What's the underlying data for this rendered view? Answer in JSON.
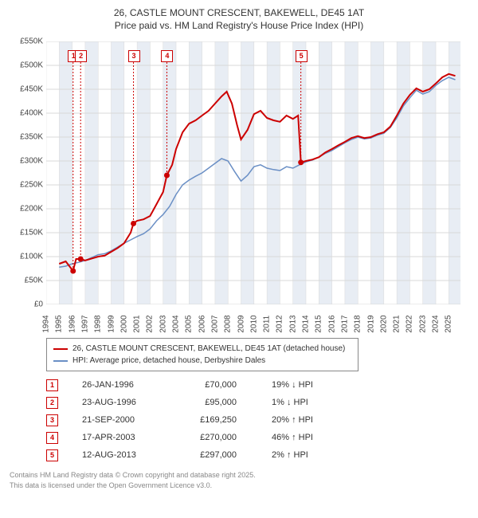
{
  "title_line1": "26, CASTLE MOUNT CRESCENT, BAKEWELL, DE45 1AT",
  "title_line2": "Price paid vs. HM Land Registry's House Price Index (HPI)",
  "chart": {
    "type": "line",
    "background_color": "#ffffff",
    "grid_color": "#d9d9d9",
    "band_color": "#e8edf4",
    "x_min": 1994,
    "x_max": 2025.9,
    "y_min": 0,
    "y_max": 550000,
    "y_ticks": [
      0,
      50000,
      100000,
      150000,
      200000,
      250000,
      300000,
      350000,
      400000,
      450000,
      500000,
      550000
    ],
    "y_tick_labels": [
      "£0",
      "£50K",
      "£100K",
      "£150K",
      "£200K",
      "£250K",
      "£300K",
      "£350K",
      "£400K",
      "£450K",
      "£500K",
      "£550K"
    ],
    "x_ticks": [
      1994,
      1995,
      1996,
      1997,
      1998,
      1999,
      2000,
      2001,
      2002,
      2003,
      2004,
      2005,
      2006,
      2007,
      2008,
      2009,
      2010,
      2011,
      2012,
      2013,
      2014,
      2015,
      2016,
      2017,
      2018,
      2019,
      2020,
      2021,
      2022,
      2023,
      2024,
      2025
    ],
    "bands": [
      [
        1995,
        1996
      ],
      [
        1997,
        1998
      ],
      [
        1999,
        2000
      ],
      [
        2001,
        2002
      ],
      [
        2003,
        2004
      ],
      [
        2005,
        2006
      ],
      [
        2007,
        2008
      ],
      [
        2009,
        2010
      ],
      [
        2011,
        2012
      ],
      [
        2013,
        2014
      ],
      [
        2015,
        2016
      ],
      [
        2017,
        2018
      ],
      [
        2019,
        2020
      ],
      [
        2021,
        2022
      ],
      [
        2023,
        2024
      ],
      [
        2025,
        2025.9
      ]
    ],
    "series_red": {
      "color": "#cc0000",
      "width": 2,
      "points": [
        [
          1995.0,
          85000
        ],
        [
          1995.5,
          90000
        ],
        [
          1996.07,
          70000
        ],
        [
          1996.3,
          95000
        ],
        [
          1996.65,
          95000
        ],
        [
          1997.0,
          92000
        ],
        [
          1997.5,
          96000
        ],
        [
          1998.0,
          100000
        ],
        [
          1998.5,
          102000
        ],
        [
          1999.0,
          110000
        ],
        [
          1999.5,
          118000
        ],
        [
          2000.0,
          128000
        ],
        [
          2000.5,
          150000
        ],
        [
          2000.72,
          169250
        ],
        [
          2001.0,
          175000
        ],
        [
          2001.5,
          178000
        ],
        [
          2002.0,
          185000
        ],
        [
          2002.5,
          210000
        ],
        [
          2003.0,
          235000
        ],
        [
          2003.29,
          270000
        ],
        [
          2003.7,
          292000
        ],
        [
          2004.0,
          325000
        ],
        [
          2004.5,
          360000
        ],
        [
          2005.0,
          378000
        ],
        [
          2005.5,
          385000
        ],
        [
          2006.0,
          395000
        ],
        [
          2006.5,
          405000
        ],
        [
          2007.0,
          420000
        ],
        [
          2007.5,
          435000
        ],
        [
          2007.9,
          445000
        ],
        [
          2008.3,
          420000
        ],
        [
          2008.7,
          375000
        ],
        [
          2009.0,
          345000
        ],
        [
          2009.5,
          365000
        ],
        [
          2010.0,
          398000
        ],
        [
          2010.5,
          405000
        ],
        [
          2011.0,
          390000
        ],
        [
          2011.5,
          385000
        ],
        [
          2012.0,
          382000
        ],
        [
          2012.5,
          395000
        ],
        [
          2013.0,
          388000
        ],
        [
          2013.4,
          395000
        ],
        [
          2013.61,
          297000
        ],
        [
          2014.0,
          300000
        ],
        [
          2014.5,
          303000
        ],
        [
          2015.0,
          308000
        ],
        [
          2015.5,
          318000
        ],
        [
          2016.0,
          325000
        ],
        [
          2016.5,
          333000
        ],
        [
          2017.0,
          340000
        ],
        [
          2017.5,
          348000
        ],
        [
          2018.0,
          352000
        ],
        [
          2018.5,
          348000
        ],
        [
          2019.0,
          350000
        ],
        [
          2019.5,
          356000
        ],
        [
          2020.0,
          360000
        ],
        [
          2020.5,
          372000
        ],
        [
          2021.0,
          395000
        ],
        [
          2021.5,
          420000
        ],
        [
          2022.0,
          438000
        ],
        [
          2022.5,
          452000
        ],
        [
          2023.0,
          445000
        ],
        [
          2023.5,
          450000
        ],
        [
          2024.0,
          462000
        ],
        [
          2024.5,
          475000
        ],
        [
          2025.0,
          482000
        ],
        [
          2025.5,
          478000
        ]
      ]
    },
    "series_blue": {
      "color": "#6a8fc5",
      "width": 1.5,
      "points": [
        [
          1995.0,
          78000
        ],
        [
          1995.5,
          80000
        ],
        [
          1996.0,
          85000
        ],
        [
          1996.5,
          88000
        ],
        [
          1997.0,
          92000
        ],
        [
          1997.5,
          98000
        ],
        [
          1998.0,
          104000
        ],
        [
          1998.5,
          106000
        ],
        [
          1999.0,
          112000
        ],
        [
          1999.5,
          120000
        ],
        [
          2000.0,
          128000
        ],
        [
          2000.5,
          135000
        ],
        [
          2001.0,
          142000
        ],
        [
          2001.5,
          148000
        ],
        [
          2002.0,
          158000
        ],
        [
          2002.5,
          175000
        ],
        [
          2003.0,
          188000
        ],
        [
          2003.5,
          205000
        ],
        [
          2004.0,
          230000
        ],
        [
          2004.5,
          250000
        ],
        [
          2005.0,
          260000
        ],
        [
          2005.5,
          268000
        ],
        [
          2006.0,
          275000
        ],
        [
          2006.5,
          285000
        ],
        [
          2007.0,
          295000
        ],
        [
          2007.5,
          305000
        ],
        [
          2008.0,
          300000
        ],
        [
          2008.5,
          278000
        ],
        [
          2009.0,
          258000
        ],
        [
          2009.5,
          270000
        ],
        [
          2010.0,
          288000
        ],
        [
          2010.5,
          292000
        ],
        [
          2011.0,
          285000
        ],
        [
          2011.5,
          282000
        ],
        [
          2012.0,
          280000
        ],
        [
          2012.5,
          288000
        ],
        [
          2013.0,
          285000
        ],
        [
          2013.5,
          292000
        ],
        [
          2014.0,
          298000
        ],
        [
          2014.5,
          302000
        ],
        [
          2015.0,
          308000
        ],
        [
          2015.5,
          316000
        ],
        [
          2016.0,
          322000
        ],
        [
          2016.5,
          330000
        ],
        [
          2017.0,
          338000
        ],
        [
          2017.5,
          345000
        ],
        [
          2018.0,
          350000
        ],
        [
          2018.5,
          346000
        ],
        [
          2019.0,
          348000
        ],
        [
          2019.5,
          354000
        ],
        [
          2020.0,
          358000
        ],
        [
          2020.5,
          370000
        ],
        [
          2021.0,
          390000
        ],
        [
          2021.5,
          415000
        ],
        [
          2022.0,
          432000
        ],
        [
          2022.5,
          448000
        ],
        [
          2023.0,
          440000
        ],
        [
          2023.5,
          445000
        ],
        [
          2024.0,
          458000
        ],
        [
          2024.5,
          468000
        ],
        [
          2025.0,
          475000
        ],
        [
          2025.5,
          470000
        ]
      ]
    },
    "sale_markers": [
      {
        "n": "1",
        "x": 1996.07,
        "y": 70000
      },
      {
        "n": "2",
        "x": 1996.65,
        "y": 95000
      },
      {
        "n": "3",
        "x": 2000.72,
        "y": 169250
      },
      {
        "n": "4",
        "x": 2003.29,
        "y": 270000
      },
      {
        "n": "5",
        "x": 2013.61,
        "y": 297000
      }
    ],
    "marker_dot_color": "#cc0000",
    "marker_box_y_value": 520000
  },
  "legend": {
    "red_label": "26, CASTLE MOUNT CRESCENT, BAKEWELL, DE45 1AT (detached house)",
    "blue_label": "HPI: Average price, detached house, Derbyshire Dales",
    "red_color": "#cc0000",
    "blue_color": "#6a8fc5"
  },
  "sales": [
    {
      "n": "1",
      "date": "26-JAN-1996",
      "price": "£70,000",
      "pct": "19% ↓ HPI"
    },
    {
      "n": "2",
      "date": "23-AUG-1996",
      "price": "£95,000",
      "pct": "1% ↓ HPI"
    },
    {
      "n": "3",
      "date": "21-SEP-2000",
      "price": "£169,250",
      "pct": "20% ↑ HPI"
    },
    {
      "n": "4",
      "date": "17-APR-2003",
      "price": "£270,000",
      "pct": "46% ↑ HPI"
    },
    {
      "n": "5",
      "date": "12-AUG-2013",
      "price": "£297,000",
      "pct": "2% ↑ HPI"
    }
  ],
  "footer_line1": "Contains HM Land Registry data © Crown copyright and database right 2025.",
  "footer_line2": "This data is licensed under the Open Government Licence v3.0."
}
